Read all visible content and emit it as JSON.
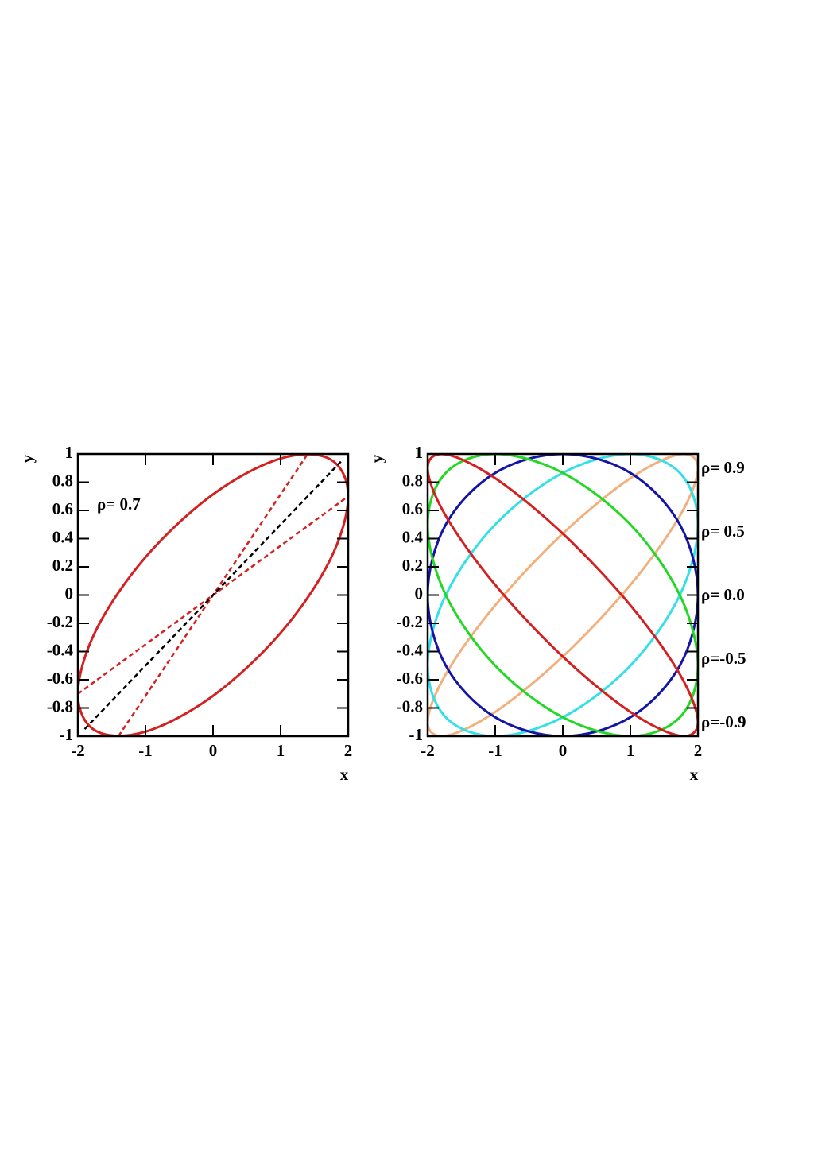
{
  "chart_data": [
    {
      "type": "line",
      "xlabel": "x",
      "ylabel": "y",
      "xlim": [
        -2,
        2
      ],
      "ylim": [
        -1,
        1
      ],
      "xticks": [
        -2,
        -1,
        0,
        1,
        2
      ],
      "yticks": [
        -1,
        -0.8,
        -0.6,
        -0.4,
        -0.2,
        0,
        0.2,
        0.4,
        0.6,
        0.8,
        1
      ],
      "legend": "upper left",
      "series": [
        {
          "name": "ρ= 0.7",
          "color": "#d42020",
          "closed": true,
          "x": [
            2,
            1.732,
            1,
            0,
            -1,
            -1.732,
            -2,
            -1.732,
            -1,
            0,
            1,
            1.732
          ],
          "values": [
            0.7,
            0.963,
            0.968,
            0.714,
            0.268,
            -0.249,
            -0.7,
            -0.963,
            -0.968,
            -0.714,
            -0.268,
            0.249
          ]
        },
        {
          "color": "#d42020",
          "dashed": true,
          "x": [
            -2,
            2
          ],
          "values": [
            -0.7,
            0.7
          ]
        },
        {
          "color": "#d42020",
          "dashed": true,
          "x": [
            -1.4,
            1.4
          ],
          "values": [
            -1,
            1
          ]
        },
        {
          "color": "#000000",
          "dashed": true,
          "x": [
            -1.9,
            1.9
          ],
          "values": [
            -0.95,
            0.95
          ]
        }
      ]
    },
    {
      "type": "line",
      "xlabel": "x",
      "ylabel": "y",
      "xlim": [
        -2,
        2
      ],
      "ylim": [
        -1,
        1
      ],
      "xticks": [
        -2,
        -1,
        0,
        1,
        2
      ],
      "yticks": [
        -1,
        -0.8,
        -0.6,
        -0.4,
        -0.2,
        0,
        0.2,
        0.4,
        0.6,
        0.8,
        1
      ],
      "legend": "right",
      "series": [
        {
          "name": "ρ= 0.9",
          "color": "#f2b07e",
          "closed": true,
          "x": [
            2,
            1.732,
            1,
            0,
            -1,
            -1.732,
            -2,
            -1.732,
            -1,
            0,
            1,
            1.732
          ],
          "values": [
            0.9,
            0.997,
            0.828,
            0.436,
            -0.072,
            -0.561,
            -0.9,
            -0.997,
            -0.828,
            -0.436,
            0.072,
            0.561
          ]
        },
        {
          "name": "ρ= 0.5",
          "color": "#33e0e8",
          "closed": true,
          "x": [
            2,
            1.732,
            1,
            0,
            -1,
            -1.732,
            -2,
            -1.732,
            -1,
            0,
            1,
            1.732
          ],
          "values": [
            0.5,
            0.866,
            1,
            0.866,
            0.5,
            0,
            -0.5,
            -0.866,
            -1,
            -0.866,
            -0.5,
            0
          ]
        },
        {
          "name": "ρ= 0.0",
          "color": "#1414a8",
          "closed": true,
          "x": [
            2,
            1.732,
            1,
            0,
            -1,
            -1.732,
            -2,
            -1.732,
            -1,
            0,
            1,
            1.732
          ],
          "values": [
            0,
            0.5,
            0.866,
            1,
            0.866,
            0.5,
            0,
            -0.5,
            -0.866,
            -1,
            -0.866,
            -0.5
          ]
        },
        {
          "name": "ρ=-0.5",
          "color": "#22d822",
          "closed": true,
          "x": [
            2,
            1.732,
            1,
            0,
            -1,
            -1.732,
            -2,
            -1.732,
            -1,
            0,
            1,
            1.732
          ],
          "values": [
            -0.5,
            0,
            0.5,
            0.866,
            1,
            0.866,
            0.5,
            0,
            -0.5,
            -0.866,
            -1,
            -0.866
          ]
        },
        {
          "name": "ρ=-0.9",
          "color": "#d42020",
          "closed": true,
          "x": [
            2,
            1.732,
            1,
            0,
            -1,
            -1.732,
            -2,
            -1.732,
            -1,
            0,
            1,
            1.732
          ],
          "values": [
            -0.9,
            -0.561,
            -0.072,
            0.436,
            0.828,
            0.997,
            0.9,
            0.561,
            0.072,
            -0.436,
            -0.828,
            -0.997
          ]
        }
      ]
    }
  ]
}
